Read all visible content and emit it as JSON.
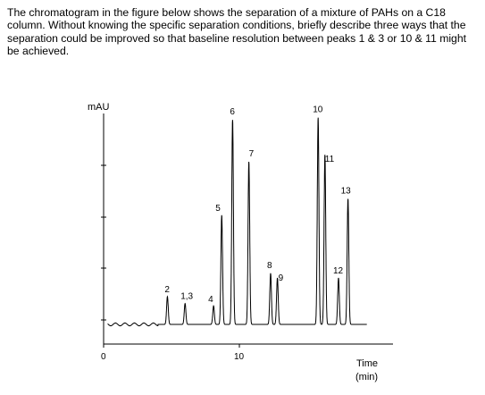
{
  "question": "The chromatogram in the figure below shows the separation of a mixture of PAHs on a C18 column. Without knowing the specific separation conditions, briefly describe three ways that the separation could be improved so that baseline resolution between peaks 1 & 3 or 10 & 11 might be achieved.",
  "chart_data": {
    "type": "line",
    "title": "",
    "ylabel": "mAU",
    "xlabel": "Time (min)",
    "xlabel_lines": [
      "Time",
      "(min)"
    ],
    "xlim": [
      0,
      18
    ],
    "ylim": [
      0,
      100
    ],
    "x_ticks": [
      0,
      10
    ],
    "y_ticks": [],
    "grid": false,
    "peaks": [
      {
        "label": "2",
        "time": 4.7,
        "height": 12
      },
      {
        "label": "1,3",
        "time": 6.0,
        "height": 9
      },
      {
        "label": "4",
        "time": 8.1,
        "height": 8
      },
      {
        "label": "5",
        "time": 8.7,
        "height": 47
      },
      {
        "label": "6",
        "time": 9.5,
        "height": 88
      },
      {
        "label": "7",
        "time": 10.7,
        "height": 70
      },
      {
        "label": "8",
        "time": 12.3,
        "height": 22
      },
      {
        "label": "9",
        "time": 12.8,
        "height": 20
      },
      {
        "label": "10",
        "time": 15.8,
        "height": 89
      },
      {
        "label": "11",
        "time": 16.3,
        "height": 73
      },
      {
        "label": "12",
        "time": 17.3,
        "height": 20
      },
      {
        "label": "13",
        "time": 18.0,
        "height": 54
      }
    ]
  }
}
